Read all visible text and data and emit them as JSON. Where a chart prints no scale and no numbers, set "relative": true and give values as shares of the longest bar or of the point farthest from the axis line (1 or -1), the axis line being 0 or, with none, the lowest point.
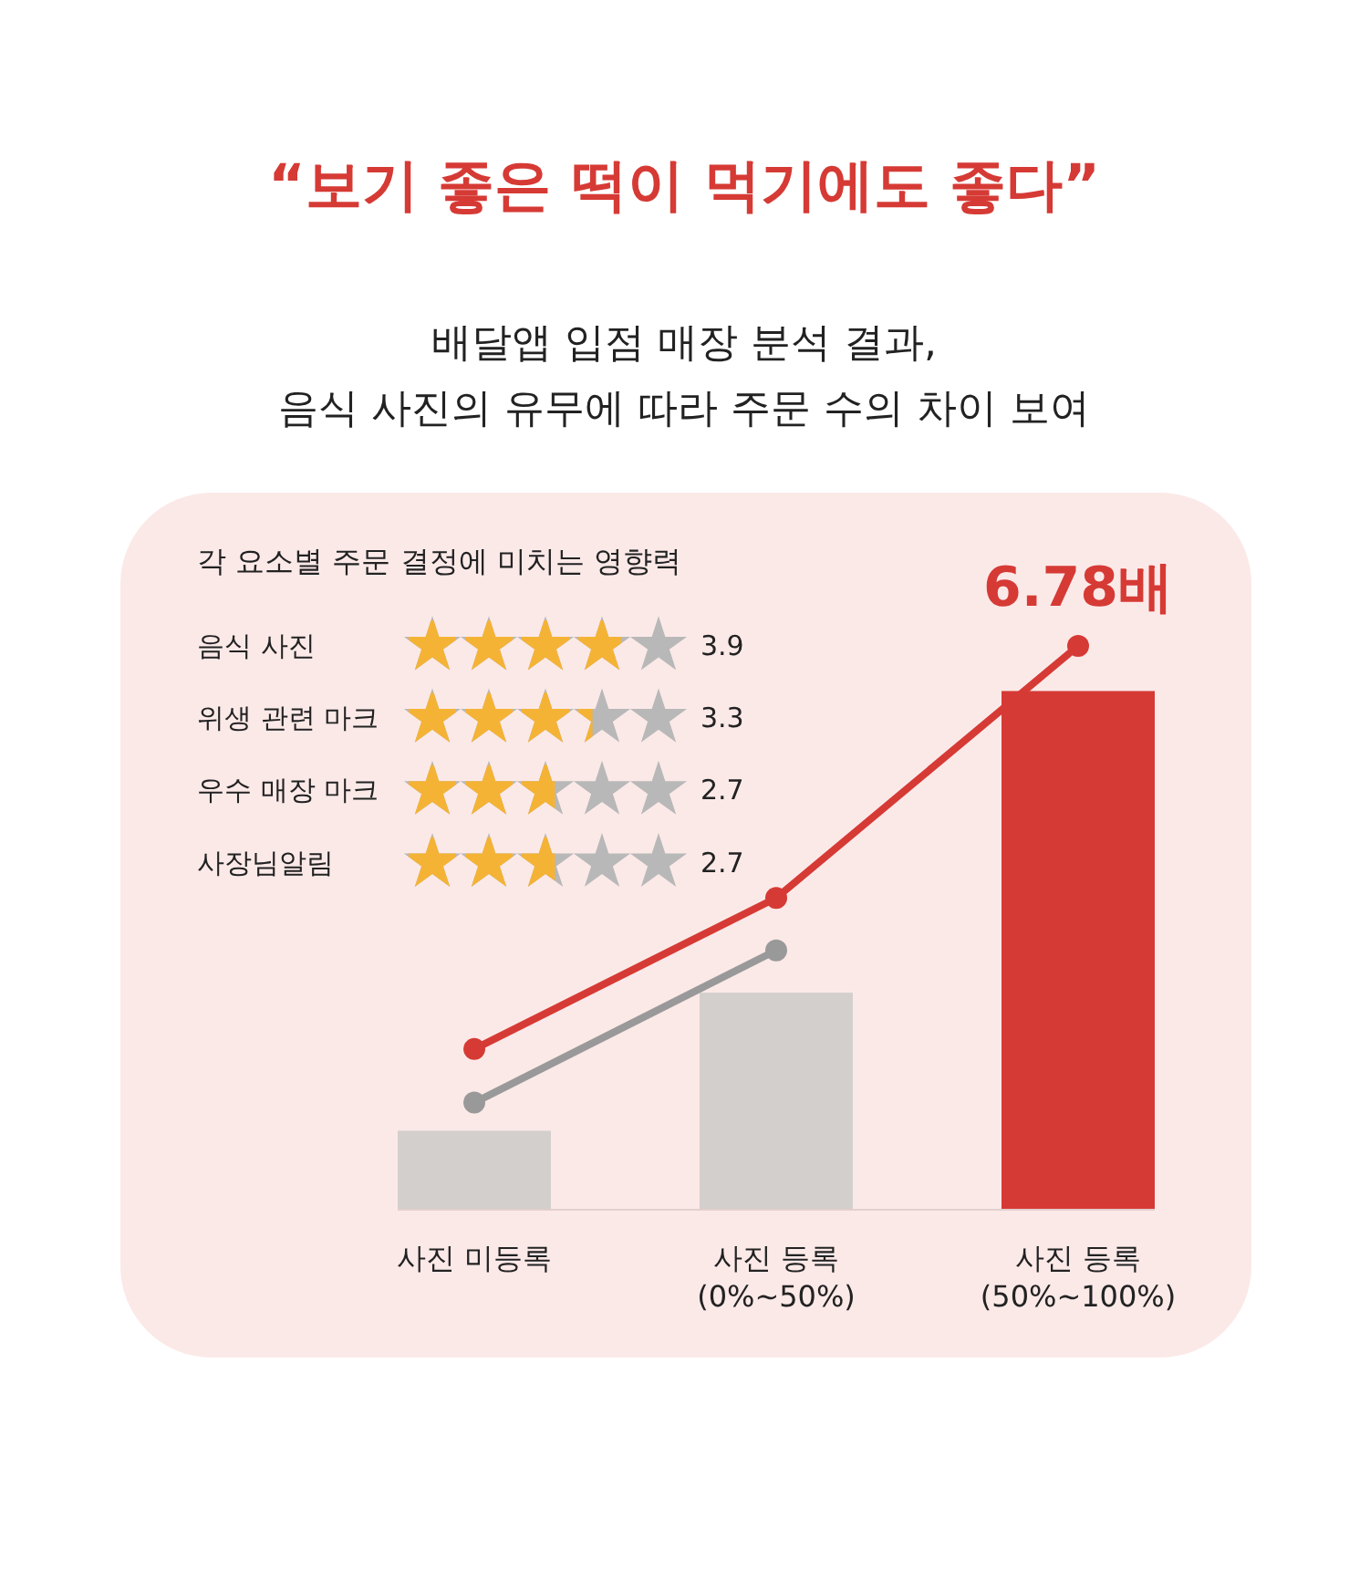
{
  "chart_data": [
    {
      "type": "other",
      "title": "각 요소별 주문 결정에 미치는 영향력",
      "categories": [
        "음식 사진",
        "위생 관련 마크",
        "우수 매장 마크",
        "사장님알림"
      ],
      "values": [
        3.9,
        3.3,
        2.7,
        2.7
      ],
      "data_labels": true
    },
    {
      "type": "bar",
      "title": "“보기 좋은 떡이 먹기에도 좋다”",
      "subtitle": "배달앱 입점 매장 분석 결과,\n음식 사진의 유무에 따라 주문 수의 차이 보여",
      "relative": true,
      "categories": [
        "사진 미등록",
        "사진 등록\n(0%~50%)",
        "사진 등록\n(50%~100%)"
      ],
      "series": [
        {
          "colors": [
            "#d3cfcc",
            "#d3cfcc",
            "#d63a35"
          ],
          "values": [
            0.14,
            0.385,
            0.92
          ]
        },
        {
          "type": "line",
          "color": "#d63a35",
          "values": [
            0.285,
            0.553,
            1
          ]
        },
        {
          "type": "line",
          "color": "#999999",
          "values": [
            0.19,
            0.46,
            null
          ]
        }
      ],
      "marker": "circle",
      "annotations": [
        {
          "text": "6.78배",
          "x": "사진 등록\n(50%~100%)",
          "y": 1
        }
      ]
    }
  ]
}
